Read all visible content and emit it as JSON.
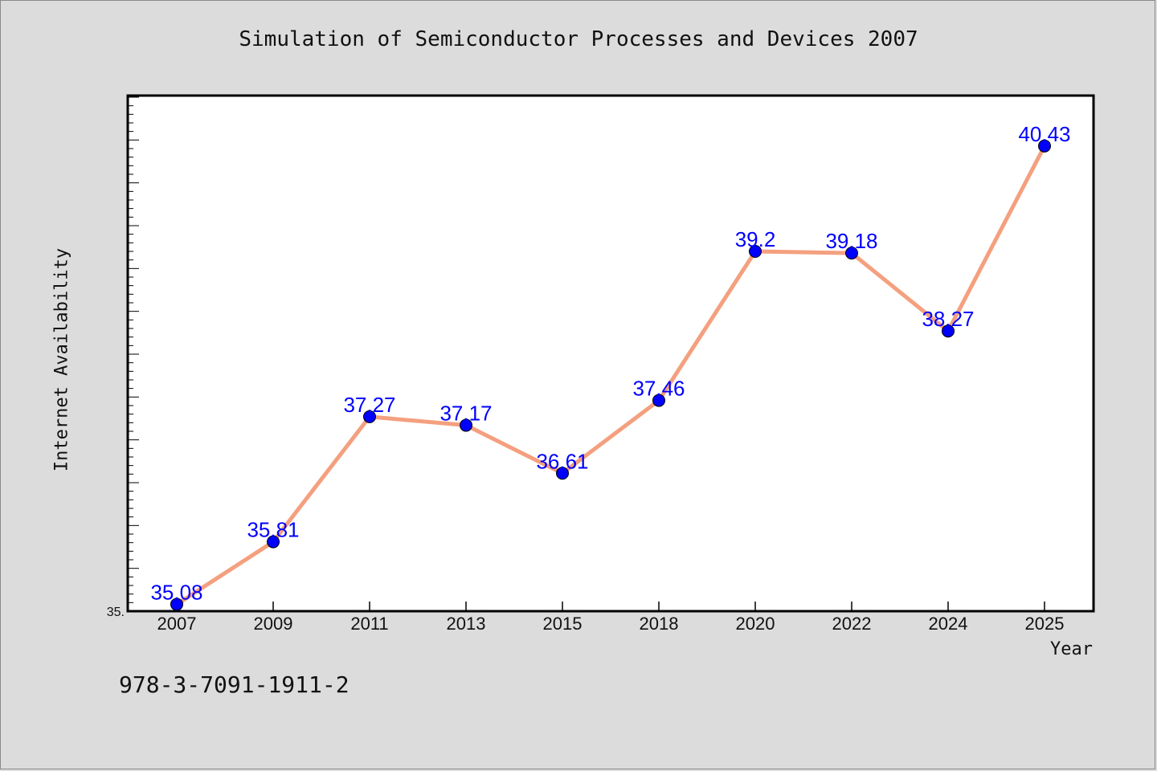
{
  "chart_data": {
    "type": "line",
    "title": "Simulation of Semiconductor Processes and Devices 2007",
    "xlabel": "Year",
    "ylabel": "Internet Availability",
    "categories": [
      "2007",
      "2009",
      "2011",
      "2013",
      "2015",
      "2018",
      "2020",
      "2022",
      "2024",
      "2025"
    ],
    "series": [
      {
        "values": [
          35.08,
          35.81,
          37.27,
          37.17,
          36.61,
          37.46,
          39.2,
          39.18,
          38.27,
          40.43
        ],
        "data_labels": [
          "35.08",
          "35.81",
          "37.27",
          "37.17",
          "36.61",
          "37.46",
          "39.2",
          "39.18",
          "38.27",
          "40.43"
        ]
      }
    ],
    "ylim": [
      35.0,
      41.0
    ],
    "y_min_label": "35.",
    "grid": false,
    "line_color": "#f4a07f",
    "marker_color": "#0000ff",
    "label_color": "#0000ff",
    "plot_background": "#ffffff",
    "figure_background": "#dcdcdc"
  },
  "footer_text": "978-3-7091-1911-2"
}
